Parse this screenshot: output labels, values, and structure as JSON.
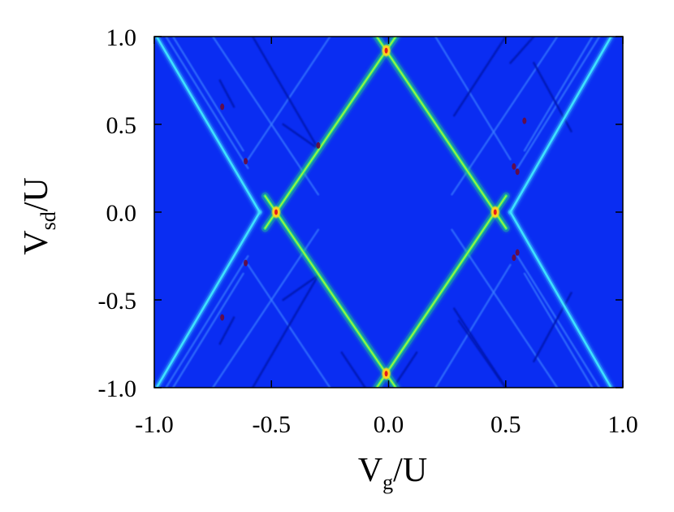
{
  "chart_data": {
    "type": "heatmap",
    "title": "",
    "xlabel": {
      "main": "V",
      "sub": "g",
      "rest": "/U"
    },
    "ylabel": {
      "main": "V",
      "sub": "sd",
      "rest": "/U"
    },
    "xlim": [
      -1.0,
      1.0
    ],
    "ylim": [
      -1.0,
      1.0
    ],
    "xticks": [
      -1.0,
      -0.5,
      0.0,
      0.5,
      1.0
    ],
    "yticks": [
      -1.0,
      -0.5,
      0.0,
      0.5,
      1.0
    ],
    "xtick_labels": [
      "-1.0",
      "-0.5",
      "0.0",
      "0.5",
      "1.0"
    ],
    "ytick_labels": [
      "-1.0",
      "-0.5",
      "0.0",
      "0.5",
      "1.0"
    ],
    "grid": false,
    "colormap": "jet",
    "colors": {
      "background": "#0a2df2",
      "diamond_edge": "#26e27a",
      "diamond_core": "#b8f23a",
      "degeneracy_point": "#ffd21a",
      "degeneracy_center": "#e31a1a",
      "outer_line": "#3fe0ff",
      "faint_line": "#3b80ff",
      "dark_line": "#0612b0",
      "dark_red_spot": "#6a0a3a"
    },
    "coulomb_diamond": {
      "left_vertex": [
        -0.48,
        0.0
      ],
      "right_vertex": [
        0.455,
        0.0
      ],
      "top_vertex": [
        -0.01,
        0.92
      ],
      "bottom_vertex": [
        -0.01,
        -0.92
      ]
    },
    "outer_lines": [
      {
        "from": [
          -0.99,
          1.0
        ],
        "to": [
          -0.55,
          0.0
        ]
      },
      {
        "from": [
          -0.55,
          0.0
        ],
        "to": [
          -0.99,
          -1.0
        ]
      },
      {
        "from": [
          0.95,
          1.0
        ],
        "to": [
          0.52,
          0.0
        ]
      },
      {
        "from": [
          0.52,
          0.0
        ],
        "to": [
          0.95,
          -1.0
        ]
      }
    ],
    "faint_lines": [
      {
        "from": [
          -0.95,
          1.0
        ],
        "to": [
          -0.6,
          0.25
        ]
      },
      {
        "from": [
          -0.92,
          1.0
        ],
        "to": [
          -0.62,
          0.35
        ]
      },
      {
        "from": [
          -0.95,
          -1.0
        ],
        "to": [
          -0.6,
          -0.25
        ]
      },
      {
        "from": [
          -0.92,
          -1.0
        ],
        "to": [
          -0.62,
          -0.35
        ]
      },
      {
        "from": [
          0.9,
          1.0
        ],
        "to": [
          0.55,
          0.25
        ]
      },
      {
        "from": [
          0.87,
          1.0
        ],
        "to": [
          0.58,
          0.35
        ]
      },
      {
        "from": [
          0.9,
          -1.0
        ],
        "to": [
          0.55,
          -0.25
        ]
      },
      {
        "from": [
          0.87,
          -1.0
        ],
        "to": [
          0.58,
          -0.35
        ]
      },
      {
        "from": [
          -0.75,
          1.0
        ],
        "to": [
          -0.3,
          0.1
        ]
      },
      {
        "from": [
          -0.75,
          -1.0
        ],
        "to": [
          -0.3,
          -0.1
        ]
      },
      {
        "from": [
          0.72,
          1.0
        ],
        "to": [
          0.27,
          0.1
        ]
      },
      {
        "from": [
          0.72,
          -1.0
        ],
        "to": [
          0.27,
          -0.1
        ]
      },
      {
        "from": [
          -0.6,
          -0.3
        ],
        "to": [
          -0.25,
          -1.0
        ]
      },
      {
        "from": [
          0.52,
          -0.3
        ],
        "to": [
          0.2,
          -1.0
        ]
      },
      {
        "from": [
          -0.6,
          0.3
        ],
        "to": [
          -0.25,
          1.0
        ]
      },
      {
        "from": [
          0.52,
          0.3
        ],
        "to": [
          0.2,
          1.0
        ]
      }
    ],
    "dark_lines": [
      {
        "from": [
          -0.58,
          1.0
        ],
        "to": [
          -0.3,
          0.36
        ]
      },
      {
        "from": [
          -0.58,
          -1.0
        ],
        "to": [
          -0.3,
          -0.36
        ]
      },
      {
        "from": [
          0.52,
          0.85
        ],
        "to": [
          0.62,
          1.0
        ]
      },
      {
        "from": [
          0.5,
          1.0
        ],
        "to": [
          0.28,
          0.55
        ]
      },
      {
        "from": [
          0.5,
          -1.0
        ],
        "to": [
          0.28,
          -0.55
        ]
      },
      {
        "from": [
          0.62,
          0.85
        ],
        "to": [
          0.78,
          0.46
        ]
      },
      {
        "from": [
          0.62,
          -0.85
        ],
        "to": [
          0.78,
          -0.46
        ]
      },
      {
        "from": [
          -0.72,
          0.75
        ],
        "to": [
          -0.66,
          0.6
        ]
      },
      {
        "from": [
          -0.72,
          -0.75
        ],
        "to": [
          -0.66,
          -0.6
        ]
      },
      {
        "from": [
          -0.45,
          0.5
        ],
        "to": [
          -0.3,
          0.36
        ]
      },
      {
        "from": [
          -0.45,
          -0.5
        ],
        "to": [
          -0.3,
          -0.36
        ]
      },
      {
        "from": [
          0.3,
          -0.62
        ],
        "to": [
          0.5,
          -1.0
        ]
      },
      {
        "from": [
          -0.2,
          -0.8
        ],
        "to": [
          -0.1,
          -1.0
        ]
      },
      {
        "from": [
          0.12,
          -0.8
        ],
        "to": [
          0.02,
          -1.0
        ]
      }
    ],
    "red_spots": [
      [
        -0.71,
        0.6
      ],
      [
        -0.61,
        0.29
      ],
      [
        -0.61,
        -0.29
      ],
      [
        -0.71,
        -0.6
      ],
      [
        0.535,
        0.26
      ],
      [
        0.55,
        0.23
      ],
      [
        0.535,
        -0.26
      ],
      [
        0.55,
        -0.23
      ],
      [
        -0.3,
        0.38
      ],
      [
        0.58,
        0.52
      ]
    ]
  }
}
